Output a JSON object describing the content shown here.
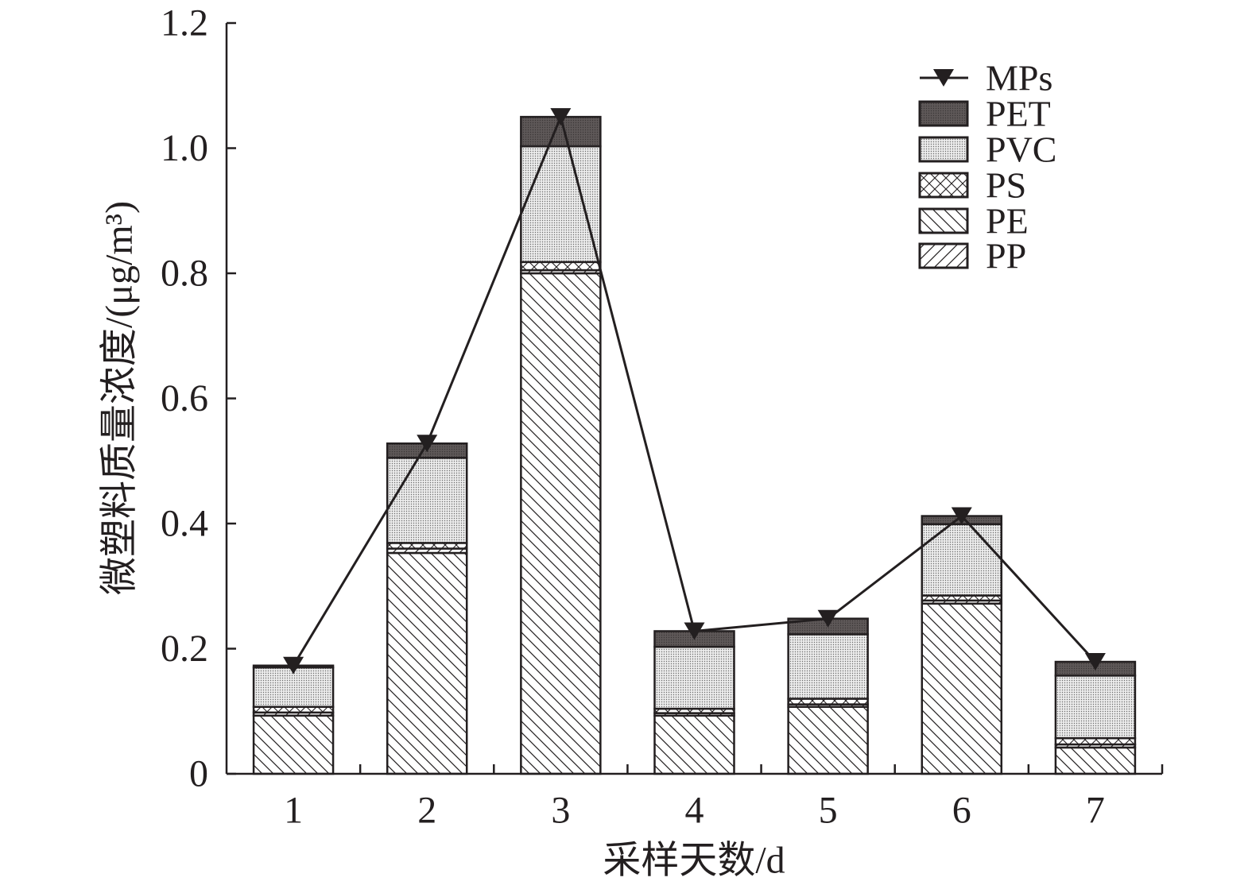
{
  "chart_data": {
    "type": "bar",
    "categories": [
      "1",
      "2",
      "3",
      "4",
      "5",
      "6",
      "7"
    ],
    "xlabel": "采样天数/d",
    "ylabel": "微塑料质量浓度/(μg/m³)",
    "ylim": [
      0,
      1.2
    ],
    "yticks": [
      0,
      0.2,
      0.4,
      0.6,
      0.8,
      1.0,
      1.2
    ],
    "ytick_labels": [
      "0",
      "0.2",
      "0.4",
      "0.6",
      "0.8",
      "1.0",
      "1.2"
    ],
    "grid": false,
    "legend_position": "top-right",
    "stacked": true,
    "stacked_series": [
      {
        "name": "PE",
        "values": [
          0.093,
          0.353,
          0.8,
          0.093,
          0.107,
          0.272,
          0.042
        ],
        "color": "#ffffff"
      },
      {
        "name": "PP",
        "values": [
          0.005,
          0.007,
          0.005,
          0.004,
          0.004,
          0.005,
          0.005
        ],
        "color": "#ffffff"
      },
      {
        "name": "PS",
        "values": [
          0.009,
          0.009,
          0.013,
          0.007,
          0.009,
          0.008,
          0.01
        ],
        "color": "#ffffff"
      },
      {
        "name": "PVC",
        "values": [
          0.063,
          0.136,
          0.185,
          0.099,
          0.103,
          0.114,
          0.1
        ],
        "color": "#d6d6d6"
      },
      {
        "name": "PET",
        "values": [
          0.003,
          0.023,
          0.047,
          0.025,
          0.025,
          0.013,
          0.022
        ],
        "color": "#5a5555"
      }
    ],
    "line_series": {
      "name": "MPs",
      "values": [
        0.173,
        0.528,
        1.05,
        0.228,
        0.248,
        0.412,
        0.179
      ],
      "color": "#000000"
    }
  }
}
